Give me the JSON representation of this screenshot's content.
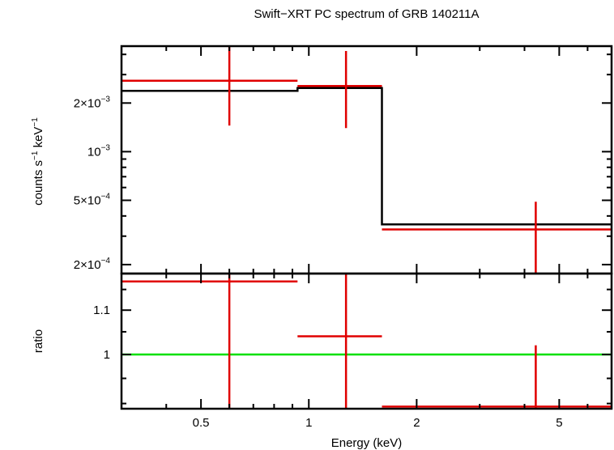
{
  "chart_data": [
    {
      "panel": "spectrum",
      "type": "step",
      "title": "Swift−XRT PC spectrum of GRB 140211A",
      "ylabel_html": "counts s<tspan dy=\"-6\" font-size=\"10\">−1</tspan><tspan dy=\"6\"> keV</tspan><tspan dy=\"-6\" font-size=\"10\">−1</tspan>",
      "ylabel": "counts s⁻¹ keV⁻¹",
      "yscale": "log",
      "ylim": [
        0.000176,
        0.0045
      ],
      "yticks": [
        {
          "value": 0.0002,
          "label": "2×10",
          "exp": "−4"
        },
        {
          "value": 0.0005,
          "label": "5×10",
          "exp": "−4"
        },
        {
          "value": 0.001,
          "label": "10",
          "exp": "−3"
        },
        {
          "value": 0.002,
          "label": "2×10",
          "exp": "−3"
        }
      ],
      "data": [
        {
          "xlo": 0.3,
          "xhi": 0.93,
          "x": 0.6,
          "y": 0.00275,
          "ylo": 0.00145,
          "yhi": 0.0045
        },
        {
          "xlo": 0.93,
          "xhi": 1.6,
          "x": 1.27,
          "y": 0.00255,
          "ylo": 0.0014,
          "yhi": 0.0042
        },
        {
          "xlo": 1.6,
          "xhi": 7.0,
          "x": 4.3,
          "y": 0.00033,
          "ylo": 0.000176,
          "yhi": 0.00049
        }
      ],
      "model": [
        {
          "xlo": 0.3,
          "xhi": 0.93,
          "y": 0.00238
        },
        {
          "xlo": 0.93,
          "xhi": 1.6,
          "y": 0.00248
        },
        {
          "xlo": 1.6,
          "xhi": 7.0,
          "y": 0.000355
        }
      ],
      "colors": {
        "data": "#e00000",
        "model": "#000000"
      }
    },
    {
      "panel": "ratio",
      "type": "step",
      "ylabel": "ratio",
      "xlabel": "Energy (keV)",
      "yscale": "log",
      "ylim": [
        0.89,
        1.19
      ],
      "yticks": [
        {
          "value": 1.0,
          "label": "1"
        },
        {
          "value": 1.1,
          "label": "1.1"
        }
      ],
      "reference_line": {
        "y": 1.0,
        "color": "#00e000"
      },
      "data": [
        {
          "xlo": 0.3,
          "xhi": 0.93,
          "x": 0.6,
          "y": 1.17,
          "ylo": 0.89,
          "yhi": 1.19
        },
        {
          "xlo": 0.93,
          "xhi": 1.6,
          "x": 1.27,
          "y": 1.04,
          "ylo": 0.89,
          "yhi": 1.19
        },
        {
          "xlo": 1.6,
          "xhi": 7.0,
          "x": 4.3,
          "y": 0.894,
          "ylo": 0.89,
          "yhi": 1.02
        }
      ],
      "colors": {
        "data": "#e00000"
      }
    }
  ],
  "xaxis": {
    "scale": "log",
    "xlim": [
      0.3,
      7.0
    ],
    "ticks": [
      {
        "value": 0.5,
        "label": "0.5"
      },
      {
        "value": 1,
        "label": "1"
      },
      {
        "value": 2,
        "label": "2"
      },
      {
        "value": 5,
        "label": "5"
      }
    ],
    "minor_ticks": [
      0.3,
      0.4,
      0.6,
      0.7,
      0.8,
      0.9,
      3,
      4,
      6,
      7
    ]
  }
}
